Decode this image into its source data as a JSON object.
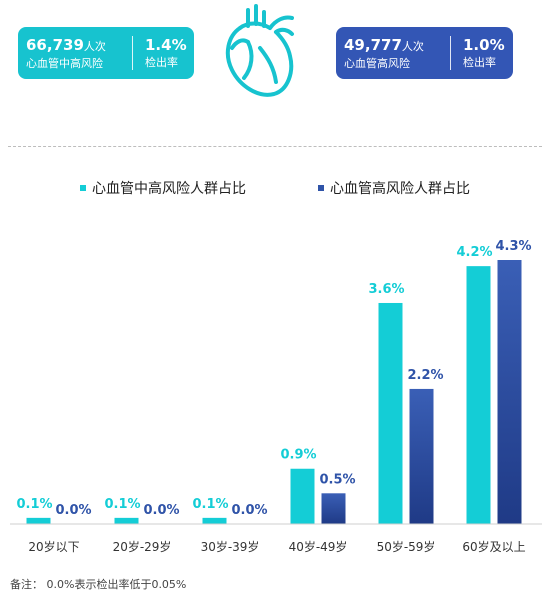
{
  "stats": {
    "left": {
      "count": "66,739",
      "unit": "人次",
      "label": "心血管中高风险",
      "rate": "1.4%",
      "rate_label": "检出率"
    },
    "right": {
      "count": "49,777",
      "unit": "人次",
      "label": "心血管高风险",
      "rate": "1.0%",
      "rate_label": "检出率"
    }
  },
  "heart_icon": "heart-icon",
  "colors": {
    "series_a": "#14cdd6",
    "series_b": "#2f53a8",
    "series_b_dark": "#1f3a86",
    "stat_left_bg": "#17c3cf",
    "stat_right_bg": "#3356b5"
  },
  "chart_data": {
    "type": "bar",
    "categories": [
      "20岁以下",
      "20岁-29岁",
      "30岁-39岁",
      "40岁-49岁",
      "50岁-59岁",
      "60岁及以上"
    ],
    "series": [
      {
        "name": "心血管中高风险人群占比",
        "values": [
          0.1,
          0.1,
          0.1,
          0.9,
          3.6,
          4.2
        ],
        "labels": [
          "0.1%",
          "0.1%",
          "0.1%",
          "0.9%",
          "3.6%",
          "4.2%"
        ]
      },
      {
        "name": "心血管高风险人群占比",
        "values": [
          0.0,
          0.0,
          0.0,
          0.5,
          2.2,
          4.3
        ],
        "labels": [
          "0.0%",
          "0.0%",
          "0.0%",
          "0.5%",
          "2.2%",
          "4.3%"
        ]
      }
    ],
    "ylim": [
      0,
      4.3
    ],
    "grid": false,
    "legend_position": "top"
  },
  "note": "备注： 0.0%表示检出率低于0.05%"
}
